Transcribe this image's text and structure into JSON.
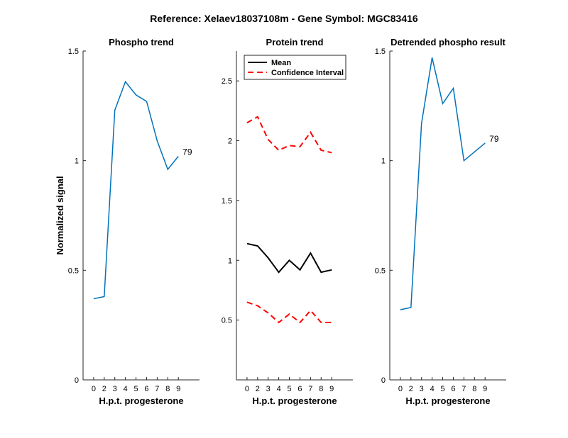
{
  "figure_title": "Reference:  Xelaev18037108m - Gene Symbol:  MGC83416",
  "colors": {
    "blue": "#0072BD",
    "black": "#000000",
    "red": "#FF0000"
  },
  "chart_data": [
    {
      "type": "line",
      "title": "Phospho trend",
      "xlabel": "H.p.t. progesterone",
      "ylabel": "Normalized signal",
      "xlim": [
        -1,
        10
      ],
      "ylim": [
        0,
        1.5
      ],
      "x_ticks": [
        0,
        2,
        3,
        4,
        5,
        6,
        7,
        8,
        9
      ],
      "y_ticks": [
        0,
        0.5,
        1,
        1.5
      ],
      "y_tick_labels": [
        "0",
        "0.5",
        "1",
        "1.5"
      ],
      "series": [
        {
          "color": "#0072BD",
          "dash": false,
          "x": [
            0,
            1,
            2,
            3,
            4,
            5,
            6,
            7,
            8
          ],
          "y": [
            0.37,
            0.38,
            1.23,
            1.36,
            1.3,
            1.27,
            1.09,
            0.96,
            1.02
          ]
        }
      ],
      "end_label": "79"
    },
    {
      "type": "line",
      "title": "Protein trend",
      "xlabel": "H.p.t. progesterone",
      "ylabel": "",
      "xlim": [
        -1,
        10
      ],
      "ylim": [
        0,
        2.75
      ],
      "x_ticks": [
        0,
        2,
        3,
        4,
        5,
        6,
        7,
        8,
        9
      ],
      "y_ticks": [
        0.5,
        1,
        1.5,
        2,
        2.5
      ],
      "y_tick_labels": [
        "0.5",
        "1",
        "1.5",
        "2",
        "2.5"
      ],
      "series": [
        {
          "name": "Mean",
          "color": "#000000",
          "dash": false,
          "x": [
            0,
            1,
            2,
            3,
            4,
            5,
            6,
            7,
            8
          ],
          "y": [
            1.14,
            1.12,
            1.02,
            0.9,
            1.0,
            0.92,
            1.06,
            0.9,
            0.92
          ]
        },
        {
          "name": "Confidence Interval",
          "color": "#FF0000",
          "dash": true,
          "x": [
            0,
            1,
            2,
            3,
            4,
            5,
            6,
            7,
            8
          ],
          "y": [
            2.15,
            2.2,
            2.01,
            1.92,
            1.96,
            1.95,
            2.07,
            1.92,
            1.9
          ]
        },
        {
          "color": "#FF0000",
          "dash": true,
          "x": [
            0,
            1,
            2,
            3,
            4,
            5,
            6,
            7,
            8
          ],
          "y": [
            0.65,
            0.62,
            0.56,
            0.48,
            0.55,
            0.48,
            0.58,
            0.48,
            0.48
          ]
        }
      ],
      "legend": {
        "placement": "top-left",
        "entries": [
          "Mean",
          "Confidence Interval"
        ]
      }
    },
    {
      "type": "line",
      "title": "Detrended phospho result",
      "xlabel": "H.p.t. progesterone",
      "ylabel": "",
      "xlim": [
        -1,
        10
      ],
      "ylim": [
        0,
        1.5
      ],
      "x_ticks": [
        0,
        2,
        3,
        4,
        5,
        6,
        7,
        8,
        9
      ],
      "y_ticks": [
        0,
        0.5,
        1,
        1.5
      ],
      "y_tick_labels": [
        "0",
        "0.5",
        "1",
        "1.5"
      ],
      "series": [
        {
          "color": "#0072BD",
          "dash": false,
          "x": [
            0,
            1,
            2,
            3,
            4,
            5,
            6,
            7,
            8
          ],
          "y": [
            0.32,
            0.33,
            1.17,
            1.47,
            1.26,
            1.33,
            1.0,
            1.04,
            1.08
          ]
        }
      ],
      "end_label": "79"
    }
  ]
}
